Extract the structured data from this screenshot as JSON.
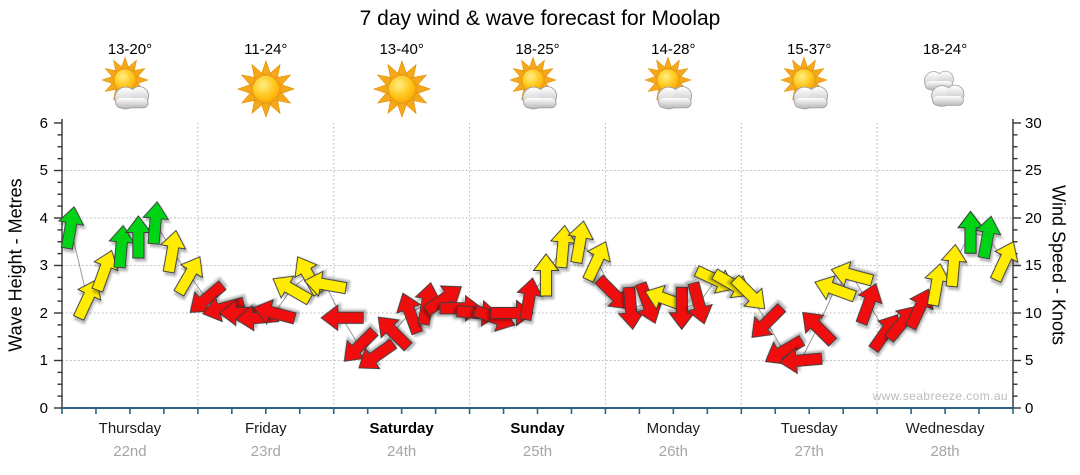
{
  "title": "7 day wind & wave forecast for Moolap",
  "watermark": "www.seabreeze.com.au",
  "axes": {
    "left_label": "Wave Height - Metres",
    "right_label": "Wind Speed - Knots",
    "left_ticks": [
      0,
      1,
      2,
      3,
      4,
      5,
      6
    ],
    "right_ticks": [
      0,
      5,
      10,
      15,
      20,
      25,
      30
    ]
  },
  "colors": {
    "arrow_green": "#00d414",
    "arrow_yellow": "#ffec00",
    "arrow_red": "#f00a0a",
    "arrow_outline": "#3a3a3a",
    "track_line": "#999999",
    "gridline": "#b3b3b3",
    "axis_black": "#333333",
    "axis_blue": "#2d6384",
    "date_gray": "#a6a6a6"
  },
  "days": [
    {
      "name": "Thursday",
      "date": "22nd",
      "temp": "13-20°",
      "icon": "sun-cloud",
      "bold": false
    },
    {
      "name": "Friday",
      "date": "23rd",
      "temp": "11-24°",
      "icon": "sunny",
      "bold": false
    },
    {
      "name": "Saturday",
      "date": "24th",
      "temp": "13-40°",
      "icon": "sunny",
      "bold": true
    },
    {
      "name": "Sunday",
      "date": "25th",
      "temp": "18-25°",
      "icon": "sun-cloud",
      "bold": true
    },
    {
      "name": "Monday",
      "date": "26th",
      "temp": "14-28°",
      "icon": "sun-cloud",
      "bold": false
    },
    {
      "name": "Tuesday",
      "date": "27th",
      "temp": "15-37°",
      "icon": "sun-cloud",
      "bold": false
    },
    {
      "name": "Wednesday",
      "date": "28th",
      "temp": "18-24°",
      "icon": "cloudy",
      "bold": false
    }
  ],
  "chart_data": {
    "type": "wind-arrows",
    "title": "7 day wind & wave forecast for Moolap",
    "ylabel_left": "Wave Height - Metres",
    "ylabel_right": "Wind Speed - Knots",
    "ylim_wave_metres": [
      0,
      6
    ],
    "ylim_wind_knots": [
      0,
      30
    ],
    "grid": "dotted, horizontal at 1-5 m, vertical at day boundaries",
    "points_per_day": 8,
    "dir_unit": "degrees clockwise, 0 = arrow pointing up (N)",
    "wave_height_series": "flat near 0 m across all 7 days",
    "days": [
      {
        "day": "Thursday 22nd",
        "winds": [
          {
            "knots": 19,
            "dir": 10,
            "color": "green"
          },
          {
            "knots": 11.5,
            "dir": 25,
            "color": "yellow"
          },
          {
            "knots": 14.5,
            "dir": 20,
            "color": "yellow"
          },
          {
            "knots": 17,
            "dir": 5,
            "color": "green"
          },
          {
            "knots": 18,
            "dir": 0,
            "color": "green"
          },
          {
            "knots": 19.5,
            "dir": 5,
            "color": "green"
          },
          {
            "knots": 16.5,
            "dir": 10,
            "color": "yellow"
          },
          {
            "knots": 14,
            "dir": 30,
            "color": "yellow"
          }
        ]
      },
      {
        "day": "Friday 23rd",
        "winds": [
          {
            "knots": 11.5,
            "dir": 230,
            "color": "red"
          },
          {
            "knots": 10.5,
            "dir": 255,
            "color": "red"
          },
          {
            "knots": 10,
            "dir": 270,
            "color": "red"
          },
          {
            "knots": 9.5,
            "dir": 265,
            "color": "red"
          },
          {
            "knots": 10,
            "dir": 285,
            "color": "red"
          },
          {
            "knots": 12.5,
            "dir": 300,
            "color": "yellow"
          },
          {
            "knots": 14,
            "dir": 330,
            "color": "yellow"
          },
          {
            "knots": 13,
            "dir": 280,
            "color": "yellow"
          }
        ]
      },
      {
        "day": "Saturday 24th",
        "winds": [
          {
            "knots": 9.5,
            "dir": 270,
            "color": "red"
          },
          {
            "knots": 6.5,
            "dir": 225,
            "color": "red"
          },
          {
            "knots": 5.5,
            "dir": 235,
            "color": "red"
          },
          {
            "knots": 8,
            "dir": 315,
            "color": "red"
          },
          {
            "knots": 10,
            "dir": 340,
            "color": "red"
          },
          {
            "knots": 11,
            "dir": 10,
            "color": "red"
          },
          {
            "knots": 11.5,
            "dir": 55,
            "color": "red"
          },
          {
            "knots": 10.5,
            "dir": 90,
            "color": "red"
          }
        ]
      },
      {
        "day": "Sunday 25th",
        "winds": [
          {
            "knots": 10,
            "dir": 95,
            "color": "red"
          },
          {
            "knots": 9.5,
            "dir": 110,
            "color": "red"
          },
          {
            "knots": 10,
            "dir": 90,
            "color": "red"
          },
          {
            "knots": 11.5,
            "dir": 10,
            "color": "red"
          },
          {
            "knots": 14,
            "dir": 0,
            "color": "yellow"
          },
          {
            "knots": 17,
            "dir": 5,
            "color": "yellow"
          },
          {
            "knots": 17.5,
            "dir": 10,
            "color": "yellow"
          },
          {
            "knots": 15.5,
            "dir": 25,
            "color": "yellow"
          }
        ]
      },
      {
        "day": "Monday 26th",
        "winds": [
          {
            "knots": 12,
            "dir": 135,
            "color": "red"
          },
          {
            "knots": 10.5,
            "dir": 175,
            "color": "red"
          },
          {
            "knots": 11,
            "dir": 160,
            "color": "red"
          },
          {
            "knots": 11.5,
            "dir": 290,
            "color": "yellow"
          },
          {
            "knots": 10.5,
            "dir": 180,
            "color": "red"
          },
          {
            "knots": 11,
            "dir": 165,
            "color": "red"
          },
          {
            "knots": 13.5,
            "dir": 115,
            "color": "yellow"
          },
          {
            "knots": 13,
            "dir": 120,
            "color": "yellow"
          }
        ]
      },
      {
        "day": "Tuesday 27th",
        "winds": [
          {
            "knots": 12,
            "dir": 135,
            "color": "yellow"
          },
          {
            "knots": 9,
            "dir": 225,
            "color": "red"
          },
          {
            "knots": 6,
            "dir": 240,
            "color": "red"
          },
          {
            "knots": 5,
            "dir": 265,
            "color": "red"
          },
          {
            "knots": 8.5,
            "dir": 315,
            "color": "red"
          },
          {
            "knots": 12.5,
            "dir": 290,
            "color": "yellow"
          },
          {
            "knots": 14,
            "dir": 285,
            "color": "yellow"
          },
          {
            "knots": 11,
            "dir": 20,
            "color": "red"
          }
        ]
      },
      {
        "day": "Wednesday 28th",
        "winds": [
          {
            "knots": 8,
            "dir": 35,
            "color": "red"
          },
          {
            "knots": 9,
            "dir": 40,
            "color": "red"
          },
          {
            "knots": 10.5,
            "dir": 25,
            "color": "red"
          },
          {
            "knots": 13,
            "dir": 10,
            "color": "yellow"
          },
          {
            "knots": 15,
            "dir": 5,
            "color": "yellow"
          },
          {
            "knots": 18.5,
            "dir": 0,
            "color": "green"
          },
          {
            "knots": 18,
            "dir": 10,
            "color": "green"
          },
          {
            "knots": 15.5,
            "dir": 25,
            "color": "yellow"
          }
        ]
      }
    ]
  }
}
